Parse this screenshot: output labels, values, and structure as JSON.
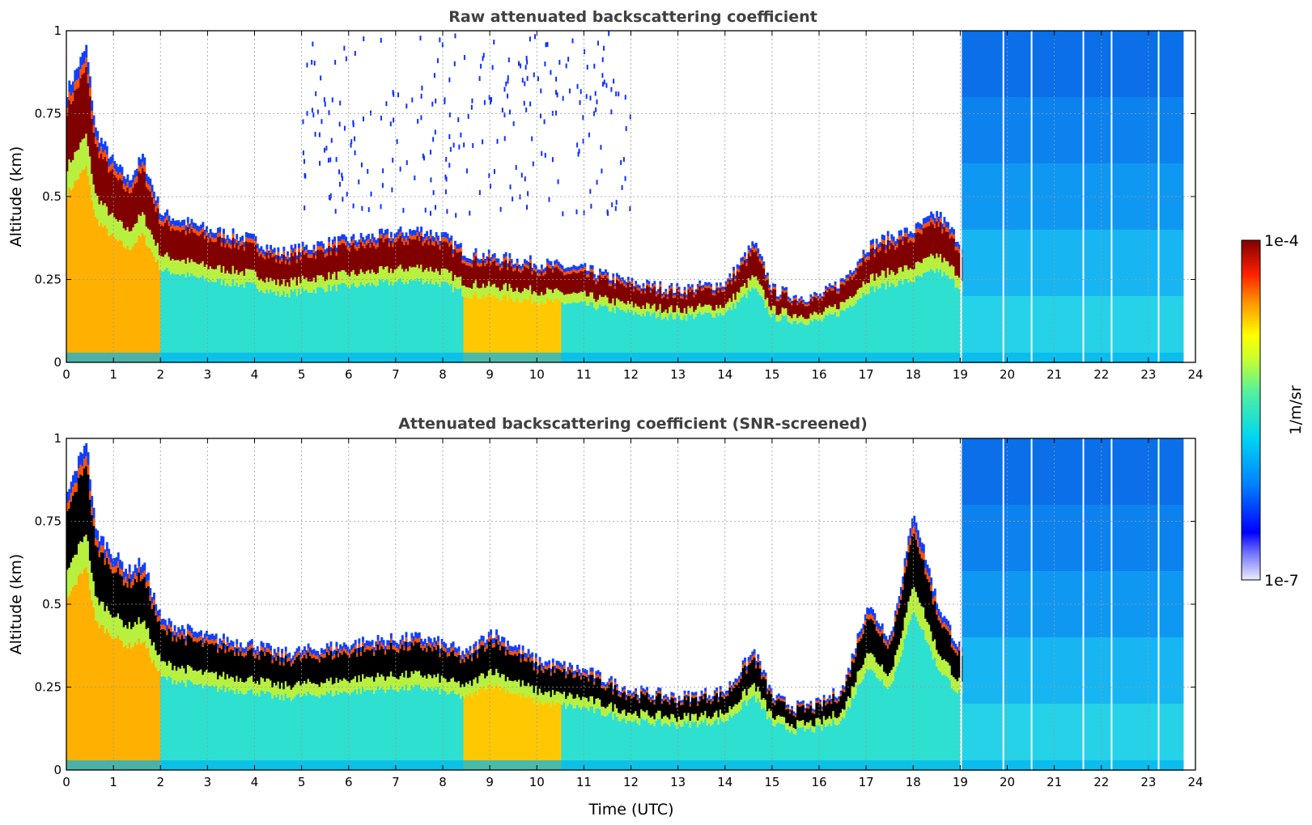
{
  "colorbar": {
    "max_label": "1e-4",
    "min_label": "1e-7",
    "unit_label": "1/m/sr",
    "scale": "log",
    "colormap": [
      "#e6e6fa",
      "#0000ff",
      "#00aaff",
      "#00e5e5",
      "#7fff7f",
      "#ffff00",
      "#ff8000",
      "#ff0000",
      "#800000"
    ]
  },
  "chart_data": [
    {
      "type": "heatmap",
      "title": "Raw attenuated backscattering coefficient",
      "xlabel": "",
      "ylabel": "Altitude (km)",
      "xlim": [
        0,
        24
      ],
      "ylim": [
        0,
        1
      ],
      "xticks": [
        "0",
        "1",
        "2",
        "3",
        "4",
        "5",
        "6",
        "7",
        "8",
        "9",
        "10",
        "11",
        "12",
        "13",
        "14",
        "15",
        "16",
        "17",
        "18",
        "19",
        "20",
        "21",
        "22",
        "23",
        "24"
      ],
      "yticks": [
        "0",
        "0.25",
        "0.5",
        "0.75",
        "1"
      ],
      "grid": true,
      "layer_top_km": {
        "time_utc": [
          0,
          0.4,
          0.6,
          1.0,
          1.3,
          1.6,
          2.0,
          3.0,
          4.0,
          4.5,
          5.5,
          6.5,
          7.5,
          8.0,
          8.5,
          9.0,
          10.0,
          11.0,
          12.0,
          13.0,
          14.0,
          14.6,
          15.0,
          15.5,
          16.0,
          16.5,
          17.0,
          17.5,
          18.0,
          18.5,
          19.0
        ],
        "altitude": [
          0.82,
          0.95,
          0.7,
          0.6,
          0.55,
          0.62,
          0.45,
          0.4,
          0.37,
          0.33,
          0.36,
          0.38,
          0.4,
          0.38,
          0.33,
          0.32,
          0.3,
          0.28,
          0.24,
          0.22,
          0.24,
          0.36,
          0.22,
          0.2,
          0.2,
          0.25,
          0.35,
          0.38,
          0.4,
          0.45,
          0.36
        ]
      },
      "background_noise_start_utc": 19
    },
    {
      "type": "heatmap",
      "title": "Attenuated backscattering coefficient (SNR-screened)",
      "xlabel": "Time (UTC)",
      "ylabel": "Altitude (km)",
      "xlim": [
        0,
        24
      ],
      "ylim": [
        0,
        1
      ],
      "xticks": [
        "0",
        "1",
        "2",
        "3",
        "4",
        "5",
        "6",
        "7",
        "8",
        "9",
        "10",
        "11",
        "12",
        "13",
        "14",
        "15",
        "16",
        "17",
        "18",
        "19",
        "20",
        "21",
        "22",
        "23",
        "24"
      ],
      "yticks": [
        "0",
        "0.25",
        "0.5",
        "0.75",
        "1"
      ],
      "grid": true,
      "layer_top_km": {
        "time_utc": [
          0,
          0.4,
          0.6,
          1.0,
          1.3,
          1.6,
          2.0,
          3.0,
          4.0,
          4.5,
          5.5,
          6.5,
          7.5,
          8.0,
          8.5,
          9.0,
          10.0,
          11.0,
          12.0,
          13.0,
          14.0,
          14.6,
          15.0,
          15.5,
          16.0,
          16.5,
          17.0,
          17.5,
          18.0,
          18.5,
          19.0
        ],
        "altitude": [
          0.83,
          1.0,
          0.72,
          0.65,
          0.6,
          0.63,
          0.45,
          0.4,
          0.38,
          0.35,
          0.37,
          0.39,
          0.4,
          0.38,
          0.35,
          0.42,
          0.33,
          0.3,
          0.24,
          0.22,
          0.24,
          0.36,
          0.22,
          0.19,
          0.2,
          0.25,
          0.5,
          0.4,
          0.78,
          0.5,
          0.36
        ]
      },
      "background_noise_start_utc": 19,
      "saturated_color": "#000000"
    }
  ]
}
